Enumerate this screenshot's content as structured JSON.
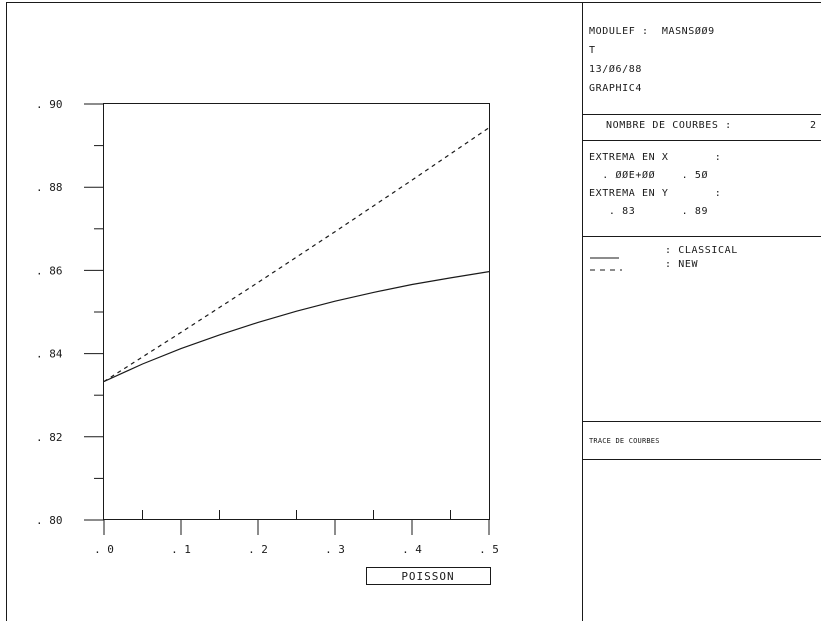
{
  "chart_data": {
    "type": "line",
    "xlabel": "POISSON",
    "ylabel": "",
    "title": "",
    "xlim": [
      0,
      0.5
    ],
    "ylim": [
      0.8,
      0.9
    ],
    "x_ticks": [
      {
        "value": 0.0,
        "label": ". 0"
      },
      {
        "value": 0.1,
        "label": ". 1"
      },
      {
        "value": 0.2,
        "label": ". 2"
      },
      {
        "value": 0.3,
        "label": ". 3"
      },
      {
        "value": 0.4,
        "label": ". 4"
      },
      {
        "value": 0.5,
        "label": ". 5"
      }
    ],
    "y_ticks": [
      {
        "value": 0.8,
        "label": ". 80"
      },
      {
        "value": 0.82,
        "label": ". 82"
      },
      {
        "value": 0.84,
        "label": ". 84"
      },
      {
        "value": 0.86,
        "label": ". 86"
      },
      {
        "value": 0.88,
        "label": ". 88"
      },
      {
        "value": 0.9,
        "label": ". 90"
      }
    ],
    "series": [
      {
        "name": "CLASSICAL",
        "style": "solid",
        "x": [
          0.0,
          0.05,
          0.1,
          0.15,
          0.2,
          0.25,
          0.3,
          0.35,
          0.4,
          0.45,
          0.5
        ],
        "y": [
          0.8333,
          0.8375,
          0.8412,
          0.8445,
          0.8475,
          0.8502,
          0.8526,
          0.8547,
          0.8566,
          0.8582,
          0.8597
        ]
      },
      {
        "name": "NEW",
        "style": "dashed",
        "x": [
          0.0,
          0.1,
          0.2,
          0.3,
          0.4,
          0.5
        ],
        "y": [
          0.8333,
          0.8451,
          0.8571,
          0.8693,
          0.8817,
          0.8943
        ]
      }
    ],
    "grid": false,
    "legend_position": "right-panel"
  },
  "info_panel": {
    "header_line1": "MODULEF :  MASNSØØ9",
    "header_line2": "T",
    "header_line3": "13/Ø6/88",
    "header_line4": "GRAPHIC4",
    "nombre_label": "NOMBRE DE COURBES :",
    "nombre_value": "2",
    "extrema_x_label": "EXTREMA EN X       :",
    "extrema_x_values": "  . ØØE+ØØ    . 5Ø",
    "extrema_y_label": "EXTREMA EN Y       :",
    "extrema_y_values": "   . 83       . 89",
    "legend_classical": ": CLASSICAL",
    "legend_new": ": NEW",
    "trace_label": "TRACE DE COURBES"
  }
}
